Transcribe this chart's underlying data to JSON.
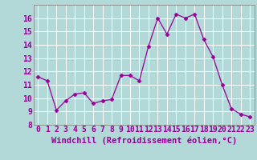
{
  "x": [
    0,
    1,
    2,
    3,
    4,
    5,
    6,
    7,
    8,
    9,
    10,
    11,
    12,
    13,
    14,
    15,
    16,
    17,
    18,
    19,
    20,
    21,
    22,
    23
  ],
  "y": [
    11.6,
    11.3,
    9.1,
    9.8,
    10.3,
    10.4,
    9.6,
    9.8,
    9.9,
    11.7,
    11.7,
    11.3,
    13.9,
    16.0,
    14.8,
    16.3,
    16.0,
    16.3,
    14.4,
    13.1,
    11.0,
    9.2,
    8.8,
    8.6
  ],
  "line_color": "#990099",
  "marker": "D",
  "marker_size": 2.5,
  "bg_color": "#b2d8d8",
  "grid_color": "#ffffff",
  "xlabel": "Windchill (Refroidissement éolien,°C)",
  "xlabel_fontsize": 7.5,
  "xtick_labels": [
    "0",
    "1",
    "2",
    "3",
    "4",
    "5",
    "6",
    "7",
    "8",
    "9",
    "10",
    "11",
    "12",
    "13",
    "14",
    "15",
    "16",
    "17",
    "18",
    "19",
    "20",
    "21",
    "22",
    "23"
  ],
  "ylim": [
    8,
    17
  ],
  "yticks": [
    8,
    9,
    10,
    11,
    12,
    13,
    14,
    15,
    16
  ],
  "tick_fontsize": 7,
  "spine_color": "#888888",
  "axis_bg_color": "#b2d8d8"
}
